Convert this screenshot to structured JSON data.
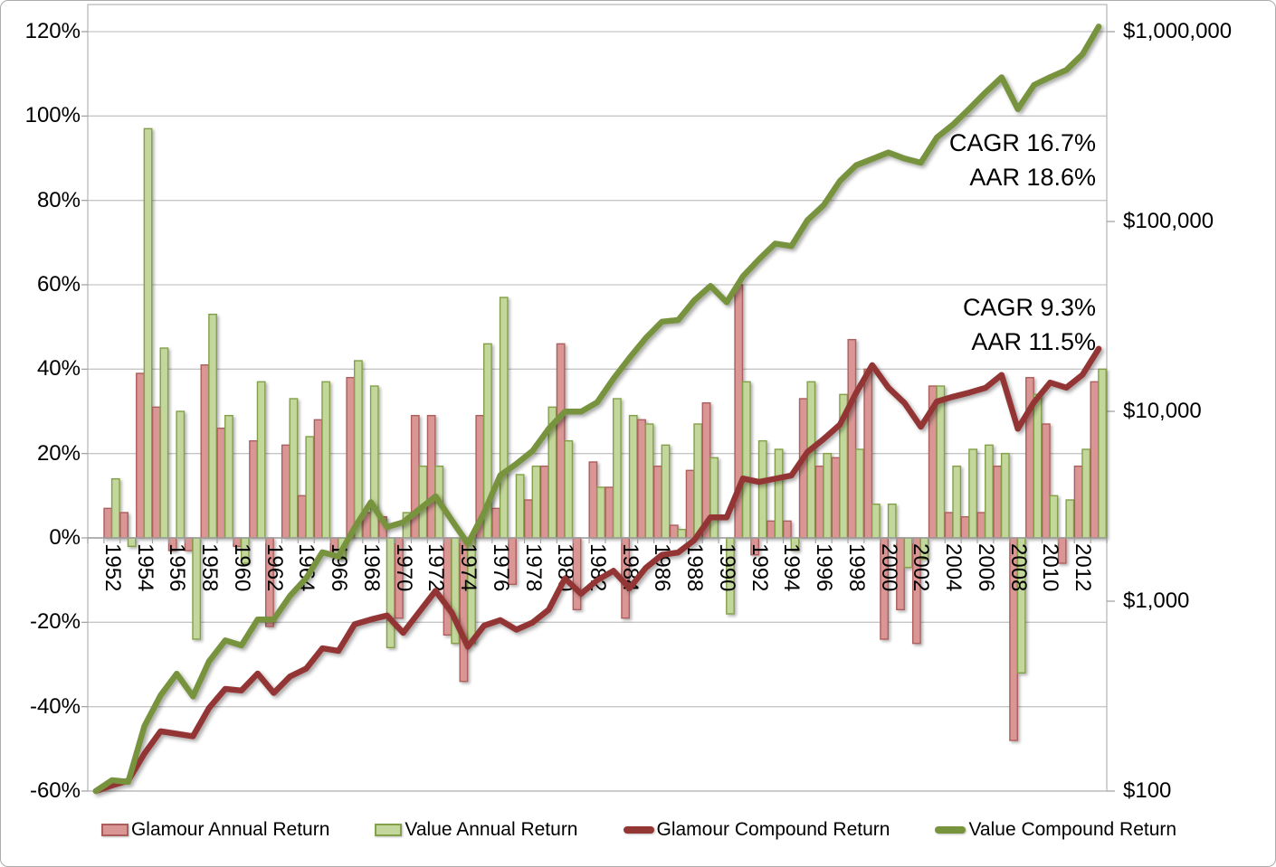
{
  "chart_data": {
    "type": "combo-bar-line",
    "title": "",
    "x": [
      1952,
      1953,
      1954,
      1955,
      1956,
      1957,
      1958,
      1959,
      1960,
      1961,
      1962,
      1963,
      1964,
      1965,
      1966,
      1967,
      1968,
      1969,
      1970,
      1971,
      1972,
      1973,
      1974,
      1975,
      1976,
      1977,
      1978,
      1979,
      1980,
      1981,
      1982,
      1983,
      1984,
      1985,
      1986,
      1987,
      1988,
      1989,
      1990,
      1991,
      1992,
      1993,
      1994,
      1995,
      1996,
      1997,
      1998,
      1999,
      2000,
      2001,
      2002,
      2003,
      2004,
      2005,
      2006,
      2007,
      2008,
      2009,
      2010,
      2011,
      2012,
      2013
    ],
    "x_tick_labels": [
      "1952",
      "1954",
      "1956",
      "1958",
      "1960",
      "1962",
      "1964",
      "1966",
      "1968",
      "1970",
      "1972",
      "1974",
      "1976",
      "1978",
      "1980",
      "1982",
      "1984",
      "1986",
      "1988",
      "1990",
      "1992",
      "1994",
      "1996",
      "1998",
      "2000",
      "2002",
      "2004",
      "2006",
      "2008",
      "2010",
      "2012"
    ],
    "series": [
      {
        "name": "Glamour Annual Return",
        "type": "bar",
        "axis": "left-percent",
        "values": [
          7,
          6,
          39,
          31,
          -3,
          -3,
          41,
          26,
          -2,
          23,
          -21,
          22,
          10,
          28,
          -3,
          38,
          6,
          5,
          -19,
          29,
          29,
          -23,
          -34,
          29,
          7,
          -11,
          9,
          17,
          46,
          -17,
          18,
          12,
          -19,
          28,
          17,
          3,
          16,
          32,
          0,
          60,
          -4,
          4,
          4,
          33,
          17,
          19,
          47,
          40,
          -24,
          -17,
          -25,
          36,
          6,
          5,
          6,
          17,
          -48,
          38,
          27,
          -6,
          17,
          37
        ]
      },
      {
        "name": "Value Annual Return",
        "type": "bar",
        "axis": "left-percent",
        "values": [
          14,
          -2,
          97,
          45,
          30,
          -24,
          53,
          29,
          -6,
          37,
          0,
          33,
          24,
          37,
          -5,
          42,
          36,
          -26,
          6,
          17,
          17,
          -25,
          -25,
          46,
          57,
          15,
          17,
          31,
          23,
          0,
          12,
          33,
          29,
          27,
          22,
          2,
          27,
          19,
          -18,
          37,
          23,
          21,
          -3,
          37,
          20,
          34,
          21,
          8,
          8,
          -7,
          -5,
          36,
          17,
          21,
          22,
          20,
          -32,
          34,
          10,
          9,
          21,
          40
        ]
      },
      {
        "name": "Glamour Compound Return",
        "type": "line",
        "axis": "right-log-dollars",
        "derivation": "cumulative growth of $100 compounded by Glamour annual returns"
      },
      {
        "name": "Value Compound Return",
        "type": "line",
        "axis": "right-log-dollars",
        "derivation": "cumulative growth of $100 compounded by Value annual returns"
      }
    ],
    "left_axis": {
      "min": -60,
      "max": 126,
      "tick_step": 20,
      "tick_values": [
        120,
        100,
        80,
        60,
        40,
        20,
        0,
        -20,
        -40,
        -60
      ],
      "tick_labels": [
        "120%",
        "100%",
        "80%",
        "60%",
        "40%",
        "20%",
        "0%",
        "-20%",
        "-40%",
        "-60%"
      ]
    },
    "right_axis": {
      "scale": "log",
      "start_value": 100,
      "tick_values": [
        1000000,
        100000,
        10000,
        1000,
        100
      ],
      "tick_labels": [
        "$1,000,000",
        "$100,000",
        "$10,000",
        "$1,000",
        "$100"
      ]
    },
    "annotations": {
      "value": {
        "cagr": "CAGR 16.7%",
        "aar": "AAR 18.6%"
      },
      "glamour": {
        "cagr": "CAGR 9.3%",
        "aar": "AAR 11.5%"
      }
    },
    "legend": [
      {
        "label": "Glamour Annual Return",
        "swatch": "bar",
        "color": "#D99694",
        "border": "#AC5E5C"
      },
      {
        "label": "Value Annual Return",
        "swatch": "bar",
        "color": "#C3D69B",
        "border": "#83A04A"
      },
      {
        "label": "Glamour Compound Return",
        "swatch": "line",
        "color": "#943634"
      },
      {
        "label": "Value Compound Return",
        "swatch": "line",
        "color": "#77933C"
      }
    ],
    "colors": {
      "glamour_bar_fill": "#D99694",
      "glamour_bar_border": "#AC5E5C",
      "value_bar_fill": "#C3D69B",
      "value_bar_border": "#83A04A",
      "glamour_line": "#943634",
      "value_line": "#77933C",
      "gridline": "#C6C6C6",
      "axis_line": "#9E9E9E",
      "plot_border": "#B9B9B9",
      "text": "#000000"
    }
  }
}
